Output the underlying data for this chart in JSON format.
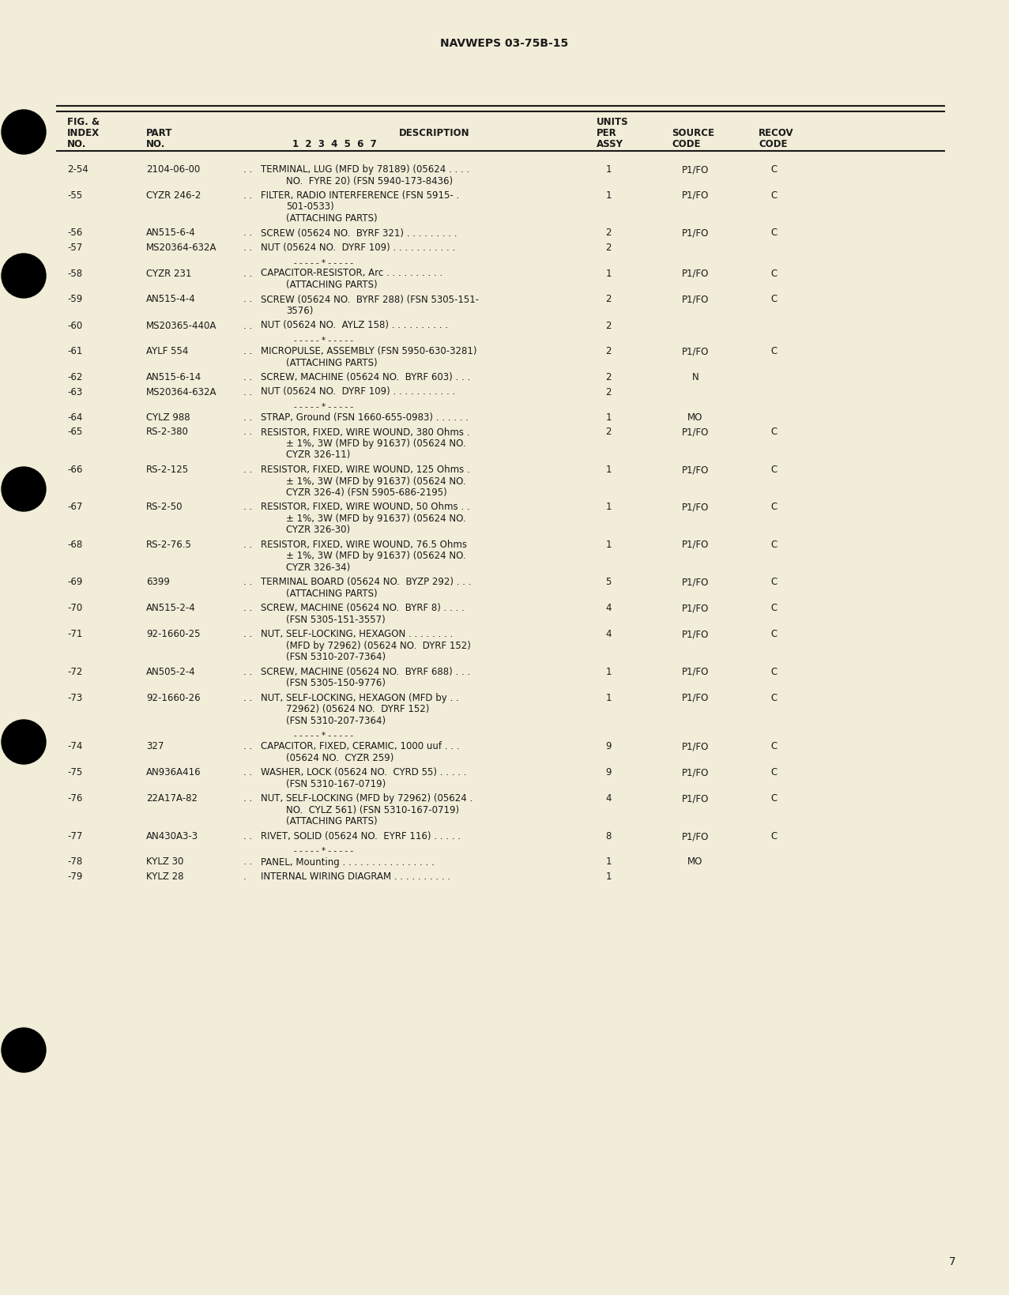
{
  "bg_color": "#f2edd8",
  "page_header": "NAVWEPS 03-75B-15",
  "page_number": "7",
  "text_color": "#1a1a1a",
  "font_size": 8.5,
  "header_font_size": 8.5,
  "rows": [
    {
      "idx": "2-54",
      "part": "2104-06-00",
      "dots": ". .",
      "desc": "TERMINAL, LUG (MFD by 78189) (05624 . . . .",
      "lines": [
        "NO.  FYRE 20) (FSN 5940-173-8436)"
      ],
      "qty": "1",
      "src": "P1/FO",
      "rec": "C"
    },
    {
      "idx": "-55",
      "part": "CYZR 246-2",
      "dots": ". .",
      "desc": "FILTER, RADIO INTERFERENCE (FSN 5915- .",
      "lines": [
        "501-0533)",
        "(ATTACHING PARTS)"
      ],
      "qty": "1",
      "src": "P1/FO",
      "rec": "C"
    },
    {
      "idx": "-56",
      "part": "AN515-6-4",
      "dots": ". .",
      "desc": "SCREW (05624 NO.  BYRF 321) . . . . . . . . .",
      "lines": [],
      "qty": "2",
      "src": "P1/FO",
      "rec": "C"
    },
    {
      "idx": "-57",
      "part": "MS20364-632A",
      "dots": ". .",
      "desc": "NUT (05624 NO.  DYRF 109) . . . . . . . . . . .",
      "lines": [],
      "qty": "2",
      "src": "",
      "rec": "",
      "sep_after": true
    },
    {
      "idx": "-58",
      "part": "CYZR 231",
      "dots": ". .",
      "desc": "CAPACITOR-RESISTOR, Arc . . . . . . . . . .",
      "lines": [
        "(ATTACHING PARTS)"
      ],
      "qty": "1",
      "src": "P1/FO",
      "rec": "C"
    },
    {
      "idx": "-59",
      "part": "AN515-4-4",
      "dots": ". .",
      "desc": "SCREW (05624 NO.  BYRF 288) (FSN 5305-151-",
      "lines": [
        "3576)"
      ],
      "qty": "2",
      "src": "P1/FO",
      "rec": "C"
    },
    {
      "idx": "-60",
      "part": "MS20365-440A",
      "dots": ". .",
      "desc": "NUT (05624 NO.  AYLZ 158) . . . . . . . . . .",
      "lines": [],
      "qty": "2",
      "src": "",
      "rec": "",
      "sep_after": true
    },
    {
      "idx": "-61",
      "part": "AYLF 554",
      "dots": ". .",
      "desc": "MICROPULSE, ASSEMBLY (FSN 5950-630-3281)",
      "lines": [
        "(ATTACHING PARTS)"
      ],
      "qty": "2",
      "src": "P1/FO",
      "rec": "C"
    },
    {
      "idx": "-62",
      "part": "AN515-6-14",
      "dots": ". .",
      "desc": "SCREW, MACHINE (05624 NO.  BYRF 603) . . .",
      "lines": [],
      "qty": "2",
      "src": "N",
      "rec": ""
    },
    {
      "idx": "-63",
      "part": "MS20364-632A",
      "dots": ". .",
      "desc": "NUT (05624 NO.  DYRF 109) . . . . . . . . . . .",
      "lines": [],
      "qty": "2",
      "src": "",
      "rec": "",
      "sep_after": true
    },
    {
      "idx": "-64",
      "part": "CYLZ 988",
      "dots": ". .",
      "desc": "STRAP, Ground (FSN 1660-655-0983) . . . . . .",
      "lines": [],
      "qty": "1",
      "src": "MO",
      "rec": ""
    },
    {
      "idx": "-65",
      "part": "RS-2-380",
      "dots": ". .",
      "desc": "RESISTOR, FIXED, WIRE WOUND, 380 Ohms .",
      "lines": [
        "± 1%, 3W (MFD by 91637) (05624 NO.",
        "CYZR 326-11)"
      ],
      "qty": "2",
      "src": "P1/FO",
      "rec": "C"
    },
    {
      "idx": "-66",
      "part": "RS-2-125",
      "dots": ". .",
      "desc": "RESISTOR, FIXED, WIRE WOUND, 125 Ohms .",
      "lines": [
        "± 1%, 3W (MFD by 91637) (05624 NO.",
        "CYZR 326-4) (FSN 5905-686-2195)"
      ],
      "qty": "1",
      "src": "P1/FO",
      "rec": "C"
    },
    {
      "idx": "-67",
      "part": "RS-2-50",
      "dots": ". .",
      "desc": "RESISTOR, FIXED, WIRE WOUND, 50 Ohms . .",
      "lines": [
        "± 1%, 3W (MFD by 91637) (05624 NO.",
        "CYZR 326-30)"
      ],
      "qty": "1",
      "src": "P1/FO",
      "rec": "C"
    },
    {
      "idx": "-68",
      "part": "RS-2-76.5",
      "dots": ". .",
      "desc": "RESISTOR, FIXED, WIRE WOUND, 76.5 Ohms",
      "lines": [
        "± 1%, 3W (MFD by 91637) (05624 NO.",
        "CYZR 326-34)"
      ],
      "qty": "1",
      "src": "P1/FO",
      "rec": "C"
    },
    {
      "idx": "-69",
      "part": "6399",
      "dots": ". .",
      "desc": "TERMINAL BOARD (05624 NO.  BYZP 292) . . .",
      "lines": [
        "(ATTACHING PARTS)"
      ],
      "qty": "5",
      "src": "P1/FO",
      "rec": "C"
    },
    {
      "idx": "-70",
      "part": "AN515-2-4",
      "dots": ". .",
      "desc": "SCREW, MACHINE (05624 NO.  BYRF 8) . . . .",
      "lines": [
        "(FSN 5305-151-3557)"
      ],
      "qty": "4",
      "src": "P1/FO",
      "rec": "C"
    },
    {
      "idx": "-71",
      "part": "92-1660-25",
      "dots": ". .",
      "desc": "NUT, SELF-LOCKING, HEXAGON . . . . . . . .",
      "lines": [
        "(MFD by 72962) (05624 NO.  DYRF 152)",
        "(FSN 5310-207-7364)"
      ],
      "qty": "4",
      "src": "P1/FO",
      "rec": "C"
    },
    {
      "idx": "-72",
      "part": "AN505-2-4",
      "dots": ". .",
      "desc": "SCREW, MACHINE (05624 NO.  BYRF 688) . . .",
      "lines": [
        "(FSN 5305-150-9776)"
      ],
      "qty": "1",
      "src": "P1/FO",
      "rec": "C"
    },
    {
      "idx": "-73",
      "part": "92-1660-26",
      "dots": ". .",
      "desc": "NUT, SELF-LOCKING, HEXAGON (MFD by . .",
      "lines": [
        "72962) (05624 NO.  DYRF 152)",
        "(FSN 5310-207-7364)"
      ],
      "qty": "1",
      "src": "P1/FO",
      "rec": "C",
      "sep_after": true
    },
    {
      "idx": "-74",
      "part": "327",
      "dots": ". .",
      "desc": "CAPACITOR, FIXED, CERAMIC, 1000 uuf . . .",
      "lines": [
        "(05624 NO.  CYZR 259)"
      ],
      "qty": "9",
      "src": "P1/FO",
      "rec": "C"
    },
    {
      "idx": "-75",
      "part": "AN936A416",
      "dots": ". .",
      "desc": "WASHER, LOCK (05624 NO.  CYRD 55) . . . . .",
      "lines": [
        "(FSN 5310-167-0719)"
      ],
      "qty": "9",
      "src": "P1/FO",
      "rec": "C"
    },
    {
      "idx": "-76",
      "part": "22A17A-82",
      "dots": ". .",
      "desc": "NUT, SELF-LOCKING (MFD by 72962) (05624 .",
      "lines": [
        "NO.  CYLZ 561) (FSN 5310-167-0719)",
        "(ATTACHING PARTS)"
      ],
      "qty": "4",
      "src": "P1/FO",
      "rec": "C"
    },
    {
      "idx": "-77",
      "part": "AN430A3-3",
      "dots": ". .",
      "desc": "RIVET, SOLID (05624 NO.  EYRF 116) . . . . .",
      "lines": [],
      "qty": "8",
      "src": "P1/FO",
      "rec": "C",
      "sep_after": true
    },
    {
      "idx": "-78",
      "part": "KYLZ 30",
      "dots": ". .",
      "desc": "PANEL, Mounting . . . . . . . . . . . . . . . .",
      "lines": [],
      "qty": "1",
      "src": "MO",
      "rec": ""
    },
    {
      "idx": "-79",
      "part": "KYLZ 28",
      "dots": ".",
      "desc": "INTERNAL WIRING DIAGRAM . . . . . . . . . .",
      "lines": [],
      "qty": "1",
      "src": "",
      "rec": ""
    }
  ]
}
